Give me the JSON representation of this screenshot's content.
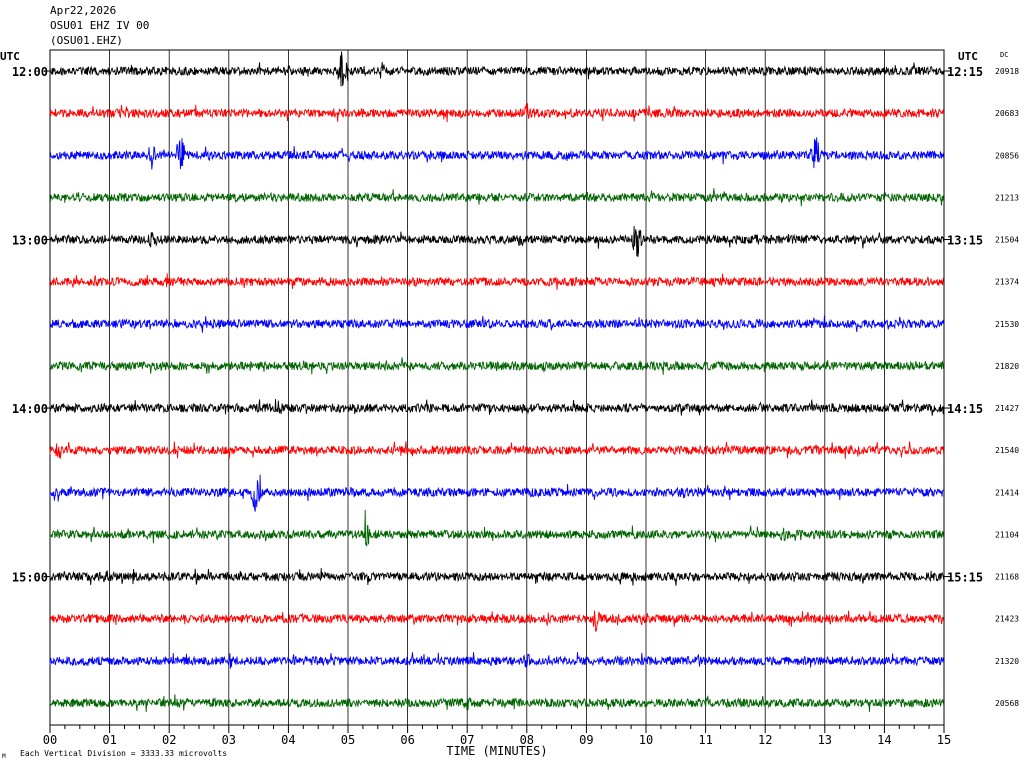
{
  "header": {
    "date": "Apr22,2026",
    "station": "OSU01 EHZ IV 00",
    "channel": "(OSU01.EHZ)"
  },
  "footer": {
    "note": "Each Vertical Division = 3333.33 microvolts",
    "corner_mark": "M"
  },
  "chart_data": {
    "type": "line",
    "title": "",
    "xlabel": "TIME (MINUTES)",
    "left_axis_label": "UTC",
    "right_axis_label": "UTC",
    "dc_label": "DC",
    "xlim": [
      0,
      15
    ],
    "x_ticks": [
      "00",
      "01",
      "02",
      "03",
      "04",
      "05",
      "06",
      "07",
      "08",
      "09",
      "10",
      "11",
      "12",
      "13",
      "14",
      "15"
    ],
    "grid": true,
    "colors": [
      "#000000",
      "#ff0000",
      "#0000ff",
      "#006400"
    ],
    "hour_labels": [
      {
        "trace": 0,
        "left": "12:00",
        "right": "12:15"
      },
      {
        "trace": 4,
        "left": "13:00",
        "right": "13:15"
      },
      {
        "trace": 8,
        "left": "14:00",
        "right": "14:15"
      },
      {
        "trace": 12,
        "left": "15:00",
        "right": "15:15"
      }
    ],
    "traces": [
      {
        "dc": "20918",
        "events": [
          {
            "t": 4.9,
            "amp": 22
          }
        ]
      },
      {
        "dc": "20683",
        "events": [
          {
            "t": 8.0,
            "amp": 12
          }
        ]
      },
      {
        "dc": "20856",
        "events": [
          {
            "t": 1.7,
            "amp": 16
          },
          {
            "t": 2.2,
            "amp": 26
          },
          {
            "t": 12.85,
            "amp": 22
          }
        ]
      },
      {
        "dc": "21213",
        "events": [
          {
            "t": 9.0,
            "amp": 8
          }
        ]
      },
      {
        "dc": "21504",
        "events": [
          {
            "t": 1.7,
            "amp": 12
          },
          {
            "t": 7.9,
            "amp": 10
          },
          {
            "t": 9.85,
            "amp": 24
          },
          {
            "t": 11.85,
            "amp": 8
          }
        ]
      },
      {
        "dc": "21374",
        "events": [
          {
            "t": 6.1,
            "amp": 8
          }
        ]
      },
      {
        "dc": "21530",
        "events": [
          {
            "t": 8.4,
            "amp": 7
          }
        ]
      },
      {
        "dc": "21820",
        "events": [
          {
            "t": 7.5,
            "amp": 6
          }
        ]
      },
      {
        "dc": "21427",
        "events": [
          {
            "t": 3.85,
            "amp": 9
          }
        ]
      },
      {
        "dc": "21540",
        "events": [
          {
            "t": 0.15,
            "amp": 12
          }
        ]
      },
      {
        "dc": "21414",
        "events": [
          {
            "t": 3.45,
            "amp": 22
          },
          {
            "t": 10.6,
            "amp": 8
          }
        ]
      },
      {
        "dc": "21104",
        "events": [
          {
            "t": 5.3,
            "amp": 16
          },
          {
            "t": 12.3,
            "amp": 9
          }
        ]
      },
      {
        "dc": "21168",
        "events": [
          {
            "t": 0.95,
            "amp": 10
          },
          {
            "t": 2.45,
            "amp": 10
          }
        ]
      },
      {
        "dc": "21423",
        "events": [
          {
            "t": 9.15,
            "amp": 14
          }
        ]
      },
      {
        "dc": "21320",
        "events": [
          {
            "t": 8.0,
            "amp": 9
          },
          {
            "t": 10.9,
            "amp": 8
          }
        ]
      },
      {
        "dc": "20568",
        "events": [
          {
            "t": 7.0,
            "amp": 9
          }
        ]
      }
    ]
  }
}
